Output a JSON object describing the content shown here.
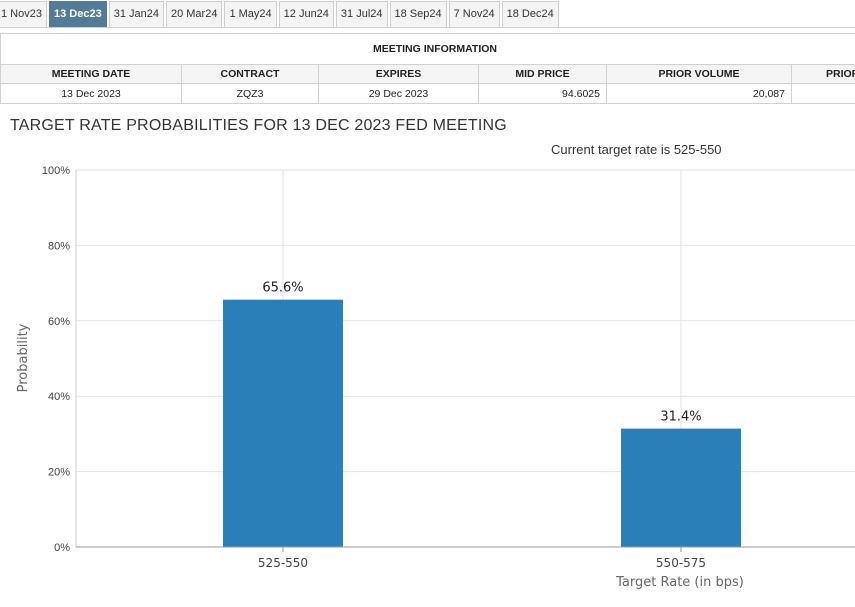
{
  "tabs": [
    "1 Nov23",
    "13 Dec23",
    "31 Jan24",
    "20 Mar24",
    "1 May24",
    "12 Jun24",
    "31 Jul24",
    "18 Sep24",
    "7 Nov24",
    "18 Dec24"
  ],
  "active_tab_index": 1,
  "meeting_info": {
    "caption": "MEETING INFORMATION",
    "headers": [
      "MEETING DATE",
      "CONTRACT",
      "EXPIRES",
      "MID PRICE",
      "PRIOR VOLUME",
      "PRIOR"
    ],
    "row": [
      "13 Dec 2023",
      "ZQZ3",
      "29 Dec 2023",
      "94.6025",
      "20,087",
      ""
    ]
  },
  "chart_data": {
    "type": "bar",
    "title": "TARGET RATE PROBABILITIES FOR 13 DEC 2023 FED MEETING",
    "subtitle": "Current target rate is 525-550",
    "categories": [
      "525-550",
      "550-575"
    ],
    "values": [
      65.6,
      31.4
    ],
    "value_labels": [
      "65.6%",
      "31.4%"
    ],
    "xlabel": "Target Rate (in bps)",
    "ylabel": "Probability",
    "ylim": [
      0,
      100
    ],
    "yticks": [
      "0%",
      "20%",
      "40%",
      "60%",
      "80%",
      "100%"
    ],
    "grid": true,
    "bar_color": "#2b7fb8"
  },
  "colors": {
    "active_tab": "#527a99",
    "bar": "#2b7fb8"
  }
}
